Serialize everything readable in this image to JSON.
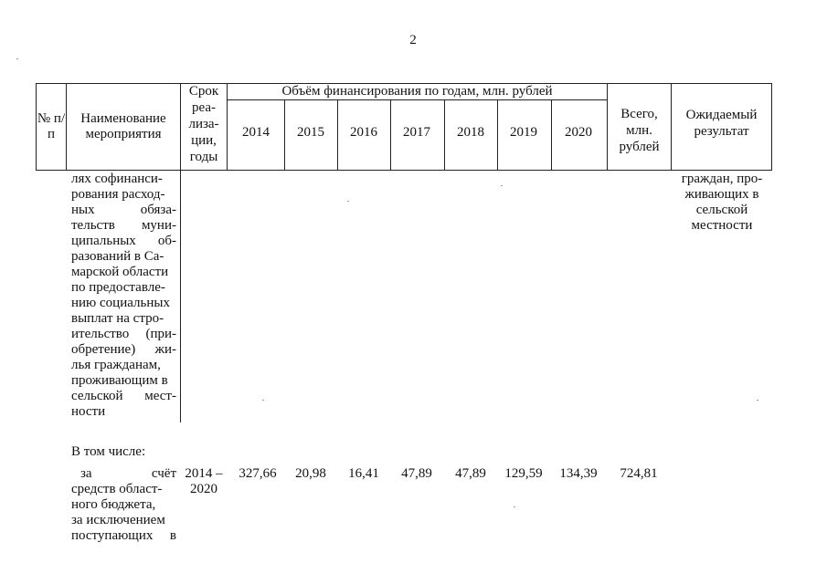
{
  "page_number": "2",
  "header": {
    "col_no": "№ п/п",
    "col_name": "Наименование мероприятия",
    "col_term_lines": [
      "Срок",
      "реа-",
      "лиза-",
      "ции,",
      "годы"
    ],
    "group_title": "Объём финансирования по годам, млн. рублей",
    "years": [
      "2014",
      "2015",
      "2016",
      "2017",
      "2018",
      "2019",
      "2020"
    ],
    "col_total_lines": [
      "Всего,",
      "млн.",
      "рублей"
    ],
    "col_result_lines": [
      "Ожидаемый",
      "результат"
    ]
  },
  "row1": {
    "name_lines": [
      "лях софинанси-",
      "рования расход-",
      "ных обяза-",
      "тельств муни-",
      "ципальных об-",
      "разований в Са-",
      "марской области",
      "по предоставле-",
      "нию социальных",
      "выплат на стро-",
      "ительство (при-",
      "обретение) жи-",
      "лья гражданам,",
      "проживающим в",
      "сельской мест-",
      "ности"
    ],
    "result_lines": [
      "граждан, про-",
      "живающих в",
      "сельской",
      "местности"
    ]
  },
  "including_label": "В том числе:",
  "row2": {
    "name_lines": [
      "за счёт",
      "средств област-",
      "ного бюджета,",
      "за исключением",
      "поступающих в"
    ],
    "term_lines": [
      "2014 –",
      "2020"
    ],
    "values": [
      "327,66",
      "20,98",
      "16,41",
      "47,89",
      "47,89",
      "129,59",
      "134,39"
    ],
    "total": "724,81"
  }
}
